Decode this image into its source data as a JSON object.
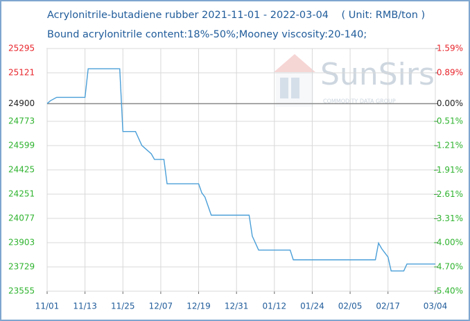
{
  "chart_data": {
    "type": "line",
    "title": "Acrylonitrile-butadiene rubber 2021-11-01 - 2022-03-04    ( Unit: RMB/ton )",
    "subtitle": "Bound acrylonitrile content:18%-50%;Mooney viscosity:20-140;",
    "watermark": "SunSirs",
    "watermark_sub": "COMMODITY DATA GROUP",
    "grid": true,
    "xlim": [
      "2021-11-01",
      "2022-03-04"
    ],
    "xticks": [
      {
        "value": "2021-11-01",
        "label": "11/01"
      },
      {
        "value": "2021-11-13",
        "label": "11/13"
      },
      {
        "value": "2021-11-25",
        "label": "11/25"
      },
      {
        "value": "2021-12-07",
        "label": "12/07"
      },
      {
        "value": "2021-12-19",
        "label": "12/19"
      },
      {
        "value": "2021-12-31",
        "label": "12/31"
      },
      {
        "value": "2022-01-12",
        "label": "01/12"
      },
      {
        "value": "2022-01-24",
        "label": "01/24"
      },
      {
        "value": "2022-02-05",
        "label": "02/05"
      },
      {
        "value": "2022-02-17",
        "label": "02/17"
      },
      {
        "value": "2022-03-04",
        "label": "03/04"
      }
    ],
    "ylim": [
      23555,
      25295
    ],
    "yticks": [
      25295,
      25121,
      24900,
      24773,
      24599,
      24425,
      24251,
      24077,
      23903,
      23729,
      23555
    ],
    "y2lim": [
      -5.4,
      1.59
    ],
    "y2ticks": [
      {
        "value": 1.59,
        "label": "1.59%"
      },
      {
        "value": 0.89,
        "label": "0.89%"
      },
      {
        "value": 0,
        "label": "0.00%"
      },
      {
        "value": -0.51,
        "label": "-0.51%"
      },
      {
        "value": -1.21,
        "label": "-1.21%"
      },
      {
        "value": -1.91,
        "label": "-1.91%"
      },
      {
        "value": -2.61,
        "label": "-2.61%"
      },
      {
        "value": -3.31,
        "label": "-3.31%"
      },
      {
        "value": -4.0,
        "label": "-4.00%"
      },
      {
        "value": -4.7,
        "label": "-4.70%"
      },
      {
        "value": -5.4,
        "label": "-5.40%"
      }
    ],
    "up_color": "#e8242b",
    "down_color": "#2fb32f",
    "flat_color": "#222222",
    "x": [
      "2021-11-01",
      "2021-11-02",
      "2021-11-04",
      "2021-11-13",
      "2021-11-14",
      "2021-11-24",
      "2021-11-25",
      "2021-11-29",
      "2021-12-01",
      "2021-12-02",
      "2021-12-04",
      "2021-12-05",
      "2021-12-08",
      "2021-12-09",
      "2021-12-19",
      "2021-12-20",
      "2021-12-21",
      "2021-12-23",
      "2022-01-04",
      "2022-01-05",
      "2022-01-06",
      "2022-01-07",
      "2022-01-17",
      "2022-01-18",
      "2022-02-13",
      "2022-02-14",
      "2022-02-15",
      "2022-02-16",
      "2022-02-17",
      "2022-02-18",
      "2022-02-22",
      "2022-02-23",
      "2022-03-04"
    ],
    "series": [
      {
        "name": "Acrylonitrile-butadiene rubber",
        "color": "#4a9fd8",
        "values": [
          24900,
          24920,
          24945,
          24945,
          25150,
          25150,
          24700,
          24700,
          24600,
          24580,
          24540,
          24500,
          24500,
          24325,
          24325,
          24260,
          24230,
          24100,
          24100,
          23950,
          23900,
          23850,
          23850,
          23780,
          23780,
          23900,
          23860,
          23830,
          23800,
          23700,
          23700,
          23750,
          23750
        ]
      }
    ]
  }
}
